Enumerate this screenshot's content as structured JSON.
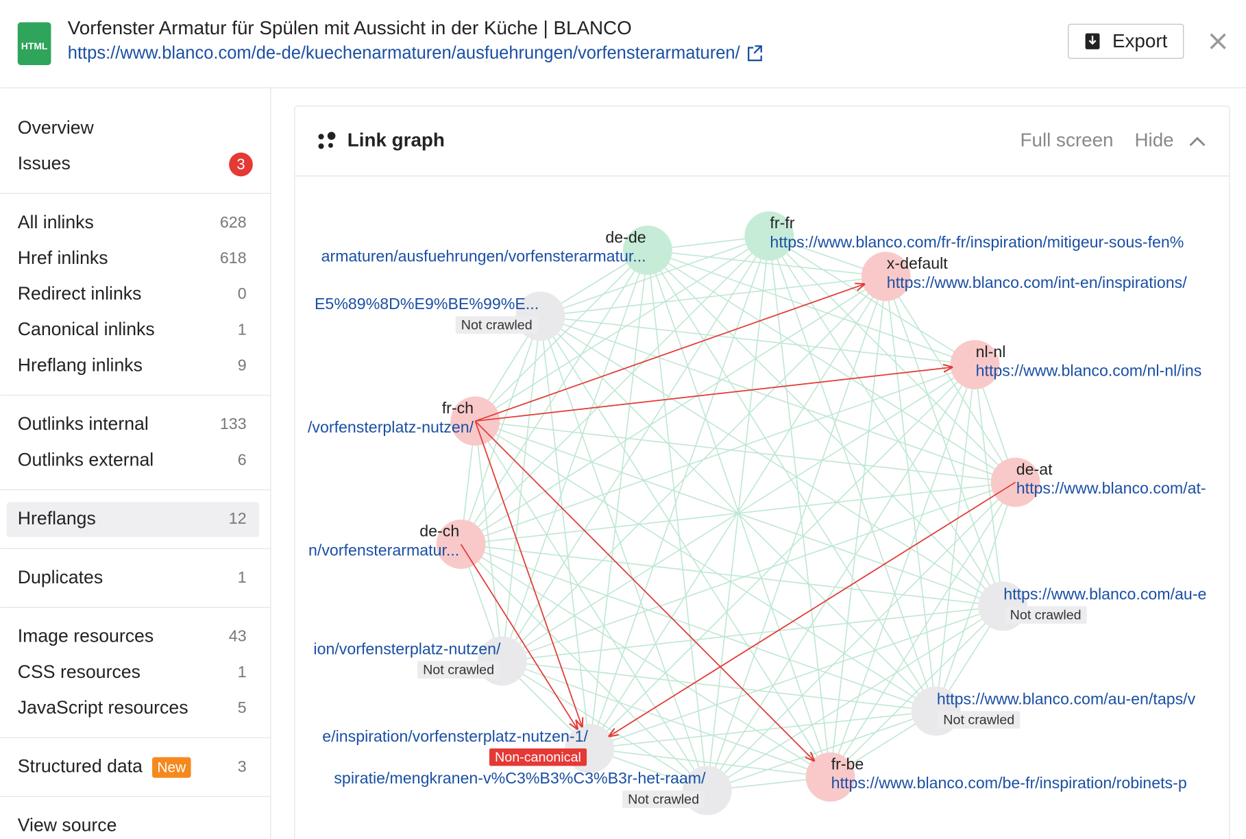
{
  "header": {
    "icon": "HTML",
    "title": "Vorfenster Armatur für Spülen mit Aussicht in der Küche | BLANCO",
    "url": "https://www.blanco.com/de-de/kuechenarmaturen/ausfuehrungen/vorfensterarmaturen/",
    "export": "Export"
  },
  "sidebar": {
    "top": [
      {
        "label": "Overview"
      },
      {
        "label": "Issues",
        "badge": "3"
      }
    ],
    "groups": [
      [
        {
          "label": "All inlinks",
          "count": "628"
        },
        {
          "label": "Href inlinks",
          "count": "618"
        },
        {
          "label": "Redirect inlinks",
          "count": "0"
        },
        {
          "label": "Canonical inlinks",
          "count": "1"
        },
        {
          "label": "Hreflang inlinks",
          "count": "9"
        }
      ],
      [
        {
          "label": "Outlinks internal",
          "count": "133"
        },
        {
          "label": "Outlinks external",
          "count": "6"
        }
      ],
      [
        {
          "label": "Hreflangs",
          "count": "12"
        }
      ],
      [
        {
          "label": "Duplicates",
          "count": "1"
        }
      ],
      [
        {
          "label": "Image resources",
          "count": "43"
        },
        {
          "label": "CSS resources",
          "count": "1"
        },
        {
          "label": "JavaScript resources",
          "count": "5"
        }
      ],
      [
        {
          "label": "Structured data",
          "tag": "New",
          "count": "3"
        }
      ],
      [
        {
          "label": "View source"
        }
      ]
    ]
  },
  "panel": {
    "title": "Link graph",
    "full_screen": "Full screen",
    "hide": "Hide",
    "nodes": [
      {
        "label": "de-de",
        "url": "armaturen/ausfuehrungen/vorfensterarmatur...",
        "color": "#c6ecd7"
      },
      {
        "label": "fr-fr",
        "url": "https://www.blanco.com/fr-fr/inspiration/mitigeur-sous-fen%",
        "color": "#c6ecd7"
      },
      {
        "label": "x-default",
        "url": "https://www.blanco.com/int-en/inspirations/",
        "color": "#f9c9c9"
      },
      {
        "label": "nl-nl",
        "url": "https://www.blanco.com/nl-nl/ins",
        "color": "#f9c9c9"
      },
      {
        "label": "de-at",
        "url": "https://www.blanco.com/at-",
        "color": "#f9c9c9"
      },
      {
        "url": "https://www.blanco.com/au-e",
        "badge": "Not crawled",
        "color": "#e9e9eb"
      },
      {
        "url": "https://www.blanco.com/au-en/taps/v",
        "badge": "Not crawled",
        "color": "#e9e9eb"
      },
      {
        "label": "fr-be",
        "url": "https://www.blanco.com/be-fr/inspiration/robinets-p",
        "color": "#f9c9c9"
      },
      {
        "url": "spiratie/mengkranen-v%C3%B3%C3%B3r-het-raam/",
        "badge": "Not crawled",
        "color": "#e9e9eb"
      },
      {
        "url": "e/inspiration/vorfensterplatz-nutzen-1/",
        "badge": "Non-canonical",
        "color": "#e9e9eb"
      },
      {
        "url": "ion/vorfensterplatz-nutzen/",
        "badge": "Not crawled",
        "color": "#e9e9eb"
      },
      {
        "label": "de-ch",
        "url": "n/vorfensterarmatur...",
        "color": "#f9c9c9"
      },
      {
        "label": "fr-ch",
        "url": "/vorfensterplatz-nutzen/",
        "color": "#f9c9c9"
      },
      {
        "url": "E5%89%8D%E9%BE%99%E...",
        "badge": "Not crawled",
        "color": "#e9e9eb"
      }
    ]
  }
}
